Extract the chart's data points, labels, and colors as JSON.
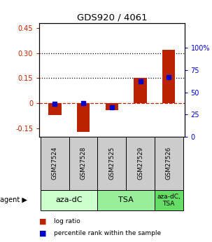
{
  "title": "GDS920 / 4061",
  "samples": [
    "GSM27524",
    "GSM27528",
    "GSM27525",
    "GSM27529",
    "GSM27526"
  ],
  "log_ratios": [
    -0.07,
    -0.17,
    -0.04,
    0.15,
    0.32
  ],
  "percentile_ranks": [
    0.37,
    0.38,
    0.33,
    0.62,
    0.67
  ],
  "agent_groups": [
    {
      "label": "aza-dC",
      "color": "#ccffcc",
      "span": [
        0,
        2
      ]
    },
    {
      "label": "TSA",
      "color": "#99ee99",
      "span": [
        2,
        4
      ]
    },
    {
      "label": "aza-dC,\nTSA",
      "color": "#66dd66",
      "span": [
        4,
        5
      ]
    }
  ],
  "ylim_left": [
    -0.2,
    0.48
  ],
  "ylim_right": [
    0.0,
    1.28
  ],
  "yticks_left": [
    -0.15,
    0,
    0.15,
    0.3,
    0.45
  ],
  "ytick_labels_left": [
    "-0.15",
    "0",
    "0.15",
    "0.30",
    "0.45"
  ],
  "yticks_right": [
    0.0,
    0.25,
    0.5,
    0.75,
    1.0
  ],
  "ytick_labels_right": [
    "0",
    "25",
    "50",
    "75",
    "100%"
  ],
  "hlines_dotted": [
    0.15,
    0.3
  ],
  "hline_dashed": 0.0,
  "bar_color": "#bb2200",
  "scatter_color": "#0000cc",
  "bar_width": 0.45,
  "sample_cell_color": "#cccccc",
  "agent_group_fontsizes": [
    8,
    8,
    6.5
  ],
  "legend_bar_label": "log ratio",
  "legend_scatter_label": "percentile rank within the sample",
  "agent_label": "agent ▶"
}
